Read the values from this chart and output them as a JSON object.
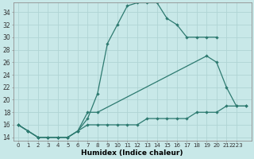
{
  "background_color": "#c8e8e8",
  "grid_color": "#b0d4d4",
  "line_color": "#2d7a70",
  "xlabel": "Humidex (Indice chaleur)",
  "ylim": [
    13.5,
    35.5
  ],
  "xlim": [
    -0.5,
    23.5
  ],
  "yticks": [
    14,
    16,
    18,
    20,
    22,
    24,
    26,
    28,
    30,
    32,
    34
  ],
  "ytick_labels": [
    "14",
    "16",
    "18",
    "20",
    "22",
    "24",
    "26",
    "28",
    "30",
    "32",
    "34"
  ],
  "xtick_labels": [
    "0",
    "1",
    "2",
    "3",
    "4",
    "5",
    "6",
    "7",
    "8",
    "9",
    "10",
    "11",
    "12",
    "13",
    "14",
    "15",
    "16",
    "17",
    "18",
    "19",
    "20",
    "21",
    "2223"
  ],
  "curve1_x": [
    0,
    1,
    2,
    3,
    4,
    5,
    6,
    7,
    8,
    9,
    10,
    11,
    12,
    13,
    14,
    15,
    16,
    17,
    18,
    19,
    20
  ],
  "curve1_y": [
    16,
    15,
    14,
    14,
    14,
    14,
    15,
    17,
    21,
    29,
    32,
    35,
    35.5,
    35.5,
    35.5,
    33,
    32,
    30,
    30,
    30,
    30
  ],
  "curve2_x": [
    0,
    1,
    2,
    3,
    4,
    5,
    6,
    7,
    8,
    19,
    20,
    21,
    22,
    23
  ],
  "curve2_y": [
    16,
    15,
    14,
    14,
    14,
    14,
    15,
    18,
    18,
    27,
    26,
    22,
    19,
    19
  ],
  "curve3_x": [
    0,
    1,
    2,
    3,
    4,
    5,
    6,
    7,
    8,
    9,
    10,
    11,
    12,
    13,
    14,
    15,
    16,
    17,
    18,
    19,
    20,
    21,
    22,
    23
  ],
  "curve3_y": [
    16,
    15,
    14,
    14,
    14,
    14,
    15,
    16,
    16,
    16,
    16,
    16,
    16,
    17,
    17,
    17,
    17,
    17,
    18,
    18,
    18,
    19,
    19,
    19
  ]
}
